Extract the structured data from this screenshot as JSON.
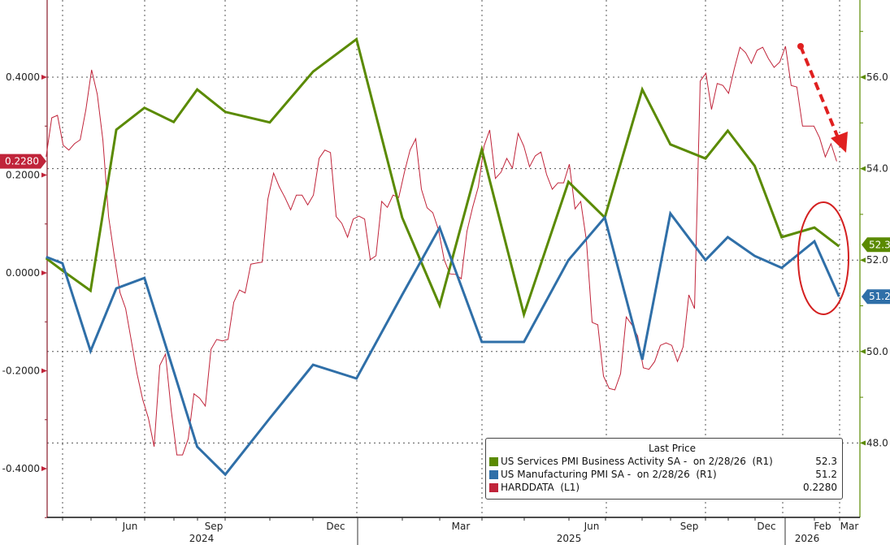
{
  "chart_data": {
    "type": "line",
    "title": "",
    "legend": {
      "header": "Last Price",
      "placement": "bottom-right",
      "entries": [
        {
          "label": "US Services PMI Business Activity SA -  on 2/28/26  (R1)",
          "value": "52.3",
          "color": "#5a8a00"
        },
        {
          "label": "US Manufacturing PMI SA -  on 2/28/26  (R1)",
          "value": "51.2",
          "color": "#2f6fa8"
        },
        {
          "label": "HARDDATA  (L1)",
          "value": "0.2280",
          "color": "#c0243a"
        }
      ]
    },
    "left_axis": {
      "range": [
        -0.5,
        0.558
      ],
      "ticks": [
        "0.4000",
        "0.2000",
        "0.0000",
        "-0.2000",
        "-0.4000"
      ],
      "tick_values": [
        0.4,
        0.2,
        0,
        -0.2,
        -0.4
      ],
      "last_value_label": "0.2280"
    },
    "right_axis": {
      "range": [
        46.37,
        57.69
      ],
      "ticks": [
        "56.0",
        "54.0",
        "52.0",
        "50.0",
        "48.0"
      ],
      "tick_values": [
        56,
        54,
        52,
        50,
        48
      ],
      "last_value_labels": [
        "52.3",
        "51.2"
      ]
    },
    "x_axis": {
      "range": [
        "2024-04-10",
        "2026-03-03"
      ],
      "month_labels": [
        "Jun",
        "Sep",
        "Dec",
        "Mar",
        "Jun",
        "Sep",
        "Dec",
        "Feb",
        "Mar"
      ],
      "year_labels": [
        "2024",
        "2025",
        "2026"
      ]
    },
    "grid": true,
    "pmi_dates": [
      "2024-04-10",
      "2024-04-24",
      "2024-05-18",
      "2024-06-09",
      "2024-07-03",
      "2024-07-28",
      "2024-08-17",
      "2024-09-10",
      "2024-10-18",
      "2024-11-24",
      "2024-12-31",
      "2025-02-08",
      "2025-03-12",
      "2025-04-17",
      "2025-05-23",
      "2025-06-30",
      "2025-07-31",
      "2025-09-01",
      "2025-09-25",
      "2025-10-25",
      "2025-11-13",
      "2025-12-06",
      "2025-12-29",
      "2026-01-26",
      "2026-02-16"
    ],
    "series": [
      {
        "name": "US Services PMI Business Activity SA",
        "axis": "right",
        "color": "#5a8a00",
        "values": [
          52.04,
          51.77,
          51.33,
          54.85,
          55.33,
          55.02,
          55.73,
          55.24,
          55.01,
          56.12,
          56.83,
          52.93,
          51.01,
          54.42,
          50.81,
          53.71,
          52.93,
          55.73,
          54.53,
          54.22,
          54.83,
          54.06,
          52.5,
          52.71,
          52.3
        ]
      },
      {
        "name": "US Manufacturing PMI SA",
        "axis": "right",
        "color": "#2f6fa8",
        "values": [
          52.07,
          51.93,
          50.01,
          51.38,
          51.61,
          49.57,
          47.92,
          47.31,
          48.54,
          49.71,
          49.41,
          51.24,
          52.71,
          50.21,
          50.21,
          52.0,
          52.93,
          49.82,
          53.02,
          52.0,
          52.5,
          52.09,
          51.83,
          52.41,
          51.2
        ]
      },
      {
        "name": "HARDDATA",
        "axis": "left",
        "color": "#c0243a",
        "start": "2024-04-10",
        "end": "2026-02-14",
        "values": [
          0.237,
          0.317,
          0.322,
          0.261,
          0.251,
          0.264,
          0.272,
          0.334,
          0.415,
          0.365,
          0.271,
          0.115,
          0.035,
          -0.04,
          -0.073,
          -0.139,
          -0.206,
          -0.259,
          -0.297,
          -0.355,
          -0.189,
          -0.166,
          -0.28,
          -0.372,
          -0.372,
          -0.339,
          -0.247,
          -0.256,
          -0.272,
          -0.156,
          -0.136,
          -0.139,
          -0.136,
          -0.06,
          -0.035,
          -0.041,
          0.018,
          0.02,
          0.022,
          0.151,
          0.204,
          0.176,
          0.154,
          0.129,
          0.159,
          0.159,
          0.139,
          0.159,
          0.234,
          0.251,
          0.246,
          0.115,
          0.101,
          0.073,
          0.11,
          0.116,
          0.11,
          0.027,
          0.035,
          0.146,
          0.134,
          0.159,
          0.154,
          0.206,
          0.251,
          0.274,
          0.171,
          0.133,
          0.123,
          0.088,
          0.027,
          -0.002,
          -0.003,
          -0.012,
          0.085,
          0.134,
          0.176,
          0.259,
          0.292,
          0.193,
          0.206,
          0.234,
          0.214,
          0.285,
          0.259,
          0.217,
          0.239,
          0.247,
          0.201,
          0.171,
          0.184,
          0.184,
          0.222,
          0.131,
          0.146,
          0.066,
          -0.101,
          -0.106,
          -0.211,
          -0.236,
          -0.239,
          -0.206,
          -0.09,
          -0.106,
          -0.129,
          -0.194,
          -0.197,
          -0.181,
          -0.148,
          -0.143,
          -0.148,
          -0.181,
          -0.151,
          -0.045,
          -0.073,
          0.392,
          0.408,
          0.334,
          0.387,
          0.383,
          0.367,
          0.417,
          0.461,
          0.45,
          0.428,
          0.455,
          0.461,
          0.438,
          0.42,
          0.431,
          0.463,
          0.383,
          0.38,
          0.3,
          0.3,
          0.3,
          0.276,
          0.237,
          0.264,
          0.228
        ]
      }
    ],
    "annotations": [
      {
        "type": "dashed-arrow",
        "color": "#e02020",
        "meaning": "HARDDATA falling"
      },
      {
        "type": "ellipse",
        "color": "#d42020",
        "meaning": "latest PMI readings"
      }
    ]
  }
}
